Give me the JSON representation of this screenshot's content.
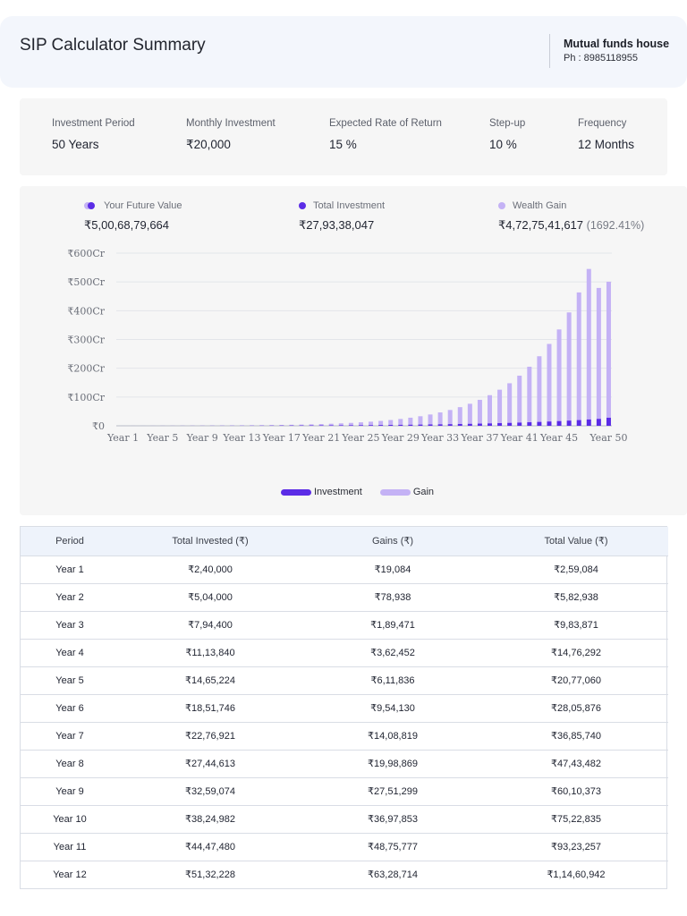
{
  "header": {
    "title": "SIP Calculator Summary",
    "house_name": "Mutual funds house",
    "phone": "Ph : 8985118955"
  },
  "params": [
    {
      "label": "Investment Period",
      "value": "50 Years"
    },
    {
      "label": "Monthly Investment",
      "value": "₹20,000"
    },
    {
      "label": "Expected Rate of Return",
      "value": "15 %"
    },
    {
      "label": "Step-up",
      "value": "10 %"
    },
    {
      "label": "Frequency",
      "value": "12 Months"
    }
  ],
  "summary": {
    "future_value": {
      "label": "Your Future Value",
      "value": "₹5,00,68,79,664"
    },
    "total_investment": {
      "label": "Total Investment",
      "value": "₹27,93,38,047"
    },
    "wealth_gain": {
      "label": "Wealth Gain",
      "value": "₹4,72,75,41,617",
      "percent": "(1692.41%)"
    }
  },
  "colors": {
    "investment": "#5b2ce6",
    "gain": "#c4b2f5",
    "future_value_dot_back": "#c4b2f5",
    "future_value_dot_front": "#5b2ce6"
  },
  "chart_data": {
    "type": "bar",
    "stacked": true,
    "y_unit": "Cr",
    "ylim": [
      0,
      600
    ],
    "y_ticks": [
      "₹0",
      "₹100Cr",
      "₹200Cr",
      "₹300Cr",
      "₹400Cr",
      "₹500Cr",
      "₹600Cr"
    ],
    "x_tick_labels": [
      "Year 1",
      "Year 5",
      "Year 9",
      "Year 13",
      "Year 17",
      "Year 21",
      "Year 25",
      "Year 29",
      "Year 33",
      "Year 37",
      "Year 41",
      "Year 45",
      "Year 50"
    ],
    "categories": [
      "Year 1",
      "Year 2",
      "Year 3",
      "Year 4",
      "Year 5",
      "Year 6",
      "Year 7",
      "Year 8",
      "Year 9",
      "Year 10",
      "Year 11",
      "Year 12",
      "Year 13",
      "Year 14",
      "Year 15",
      "Year 16",
      "Year 17",
      "Year 18",
      "Year 19",
      "Year 20",
      "Year 21",
      "Year 22",
      "Year 23",
      "Year 24",
      "Year 25",
      "Year 26",
      "Year 27",
      "Year 28",
      "Year 29",
      "Year 30",
      "Year 31",
      "Year 32",
      "Year 33",
      "Year 34",
      "Year 35",
      "Year 36",
      "Year 37",
      "Year 38",
      "Year 39",
      "Year 40",
      "Year 41",
      "Year 42",
      "Year 43",
      "Year 44",
      "Year 45",
      "Year 46",
      "Year 47",
      "Year 48",
      "Year 49",
      "Year 50"
    ],
    "series": [
      {
        "name": "Investment",
        "values": [
          0.024,
          0.05,
          0.079,
          0.111,
          0.147,
          0.185,
          0.228,
          0.274,
          0.326,
          0.382,
          0.445,
          0.513,
          0.59,
          0.67,
          0.76,
          0.86,
          0.97,
          1.09,
          1.22,
          1.37,
          1.53,
          1.7,
          1.89,
          2.1,
          2.33,
          2.59,
          2.87,
          3.17,
          3.51,
          3.87,
          4.28,
          4.72,
          5.2,
          5.73,
          6.31,
          6.95,
          7.65,
          8.42,
          9.27,
          10.2,
          11.23,
          12.36,
          13.6,
          14.96,
          16.47,
          18.12,
          19.93,
          21.93,
          24.13,
          27.93
        ]
      },
      {
        "name": "Gain",
        "values": [
          0.002,
          0.008,
          0.019,
          0.036,
          0.061,
          0.095,
          0.141,
          0.2,
          0.275,
          0.37,
          0.488,
          0.633,
          0.81,
          1.03,
          1.29,
          1.61,
          2.0,
          2.46,
          3.02,
          3.7,
          4.51,
          5.49,
          6.66,
          8.06,
          9.73,
          11.72,
          14.09,
          16.91,
          20.27,
          24.26,
          29.0,
          34.6,
          41.3,
          49.2,
          58.5,
          69.6,
          82.6,
          98.0,
          116.2,
          137.7,
          163.0,
          192.9,
          228.1,
          269.6,
          318.4,
          375.9,
          443.6,
          523.2,
          455.0,
          472.75
        ]
      }
    ],
    "legend": [
      {
        "label": "Investment",
        "color": "#5b2ce6"
      },
      {
        "label": "Gain",
        "color": "#c4b2f5"
      }
    ],
    "legend_position": "bottom",
    "grid": true
  },
  "table": {
    "headers": [
      "Period",
      "Total Invested (₹)",
      "Gains (₹)",
      "Total Value (₹)"
    ],
    "rows": [
      [
        "Year 1",
        "₹2,40,000",
        "₹19,084",
        "₹2,59,084"
      ],
      [
        "Year 2",
        "₹5,04,000",
        "₹78,938",
        "₹5,82,938"
      ],
      [
        "Year 3",
        "₹7,94,400",
        "₹1,89,471",
        "₹9,83,871"
      ],
      [
        "Year 4",
        "₹11,13,840",
        "₹3,62,452",
        "₹14,76,292"
      ],
      [
        "Year 5",
        "₹14,65,224",
        "₹6,11,836",
        "₹20,77,060"
      ],
      [
        "Year 6",
        "₹18,51,746",
        "₹9,54,130",
        "₹28,05,876"
      ],
      [
        "Year 7",
        "₹22,76,921",
        "₹14,08,819",
        "₹36,85,740"
      ],
      [
        "Year 8",
        "₹27,44,613",
        "₹19,98,869",
        "₹47,43,482"
      ],
      [
        "Year 9",
        "₹32,59,074",
        "₹27,51,299",
        "₹60,10,373"
      ],
      [
        "Year 10",
        "₹38,24,982",
        "₹36,97,853",
        "₹75,22,835"
      ],
      [
        "Year 11",
        "₹44,47,480",
        "₹48,75,777",
        "₹93,23,257"
      ],
      [
        "Year 12",
        "₹51,32,228",
        "₹63,28,714",
        "₹1,14,60,942"
      ]
    ]
  }
}
